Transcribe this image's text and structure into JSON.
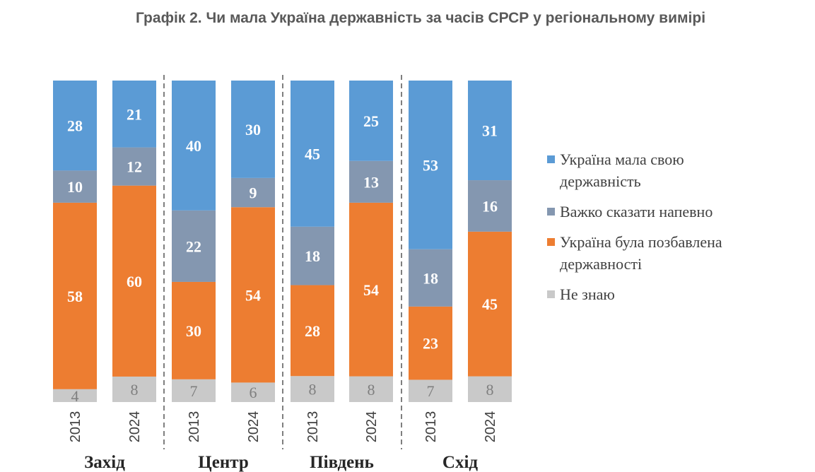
{
  "title": "Графік 2. Чи мала Україна державність за часів СРСР у регіональному вимірі",
  "colors": {
    "had_statehood": "#5b9bd5",
    "hard_to_say": "#8497b0",
    "deprived": "#ed7d31",
    "dont_know": "#c9c9c9"
  },
  "chart_data": {
    "type": "bar",
    "stacked": true,
    "orientation": "vertical",
    "grid": false,
    "legend_position": "right",
    "groups": [
      "Захід",
      "Центр",
      "Південь",
      "Схід"
    ],
    "categories": [
      "2013",
      "2024",
      "2013",
      "2024",
      "2013",
      "2024",
      "2013",
      "2024"
    ],
    "series": [
      {
        "name": "Не знаю",
        "color_key": "dont_know",
        "values": [
          4,
          8,
          7,
          6,
          8,
          8,
          7,
          8
        ]
      },
      {
        "name": "Україна була позбавлена державності",
        "color_key": "deprived",
        "values": [
          58,
          60,
          30,
          54,
          28,
          54,
          23,
          45
        ]
      },
      {
        "name": "Важко сказати напевно",
        "color_key": "hard_to_say",
        "values": [
          10,
          12,
          22,
          9,
          18,
          13,
          18,
          16
        ]
      },
      {
        "name": "Україна мала свою державність",
        "color_key": "had_statehood",
        "values": [
          28,
          21,
          40,
          30,
          45,
          25,
          53,
          31
        ]
      }
    ],
    "legend": [
      {
        "label": "Україна мала свою державність",
        "color_key": "had_statehood"
      },
      {
        "label": "Важко сказати напевно",
        "color_key": "hard_to_say"
      },
      {
        "label": "Україна була позбавлена державності",
        "color_key": "deprived"
      },
      {
        "label": "Не знаю",
        "color_key": "dont_know"
      }
    ]
  }
}
